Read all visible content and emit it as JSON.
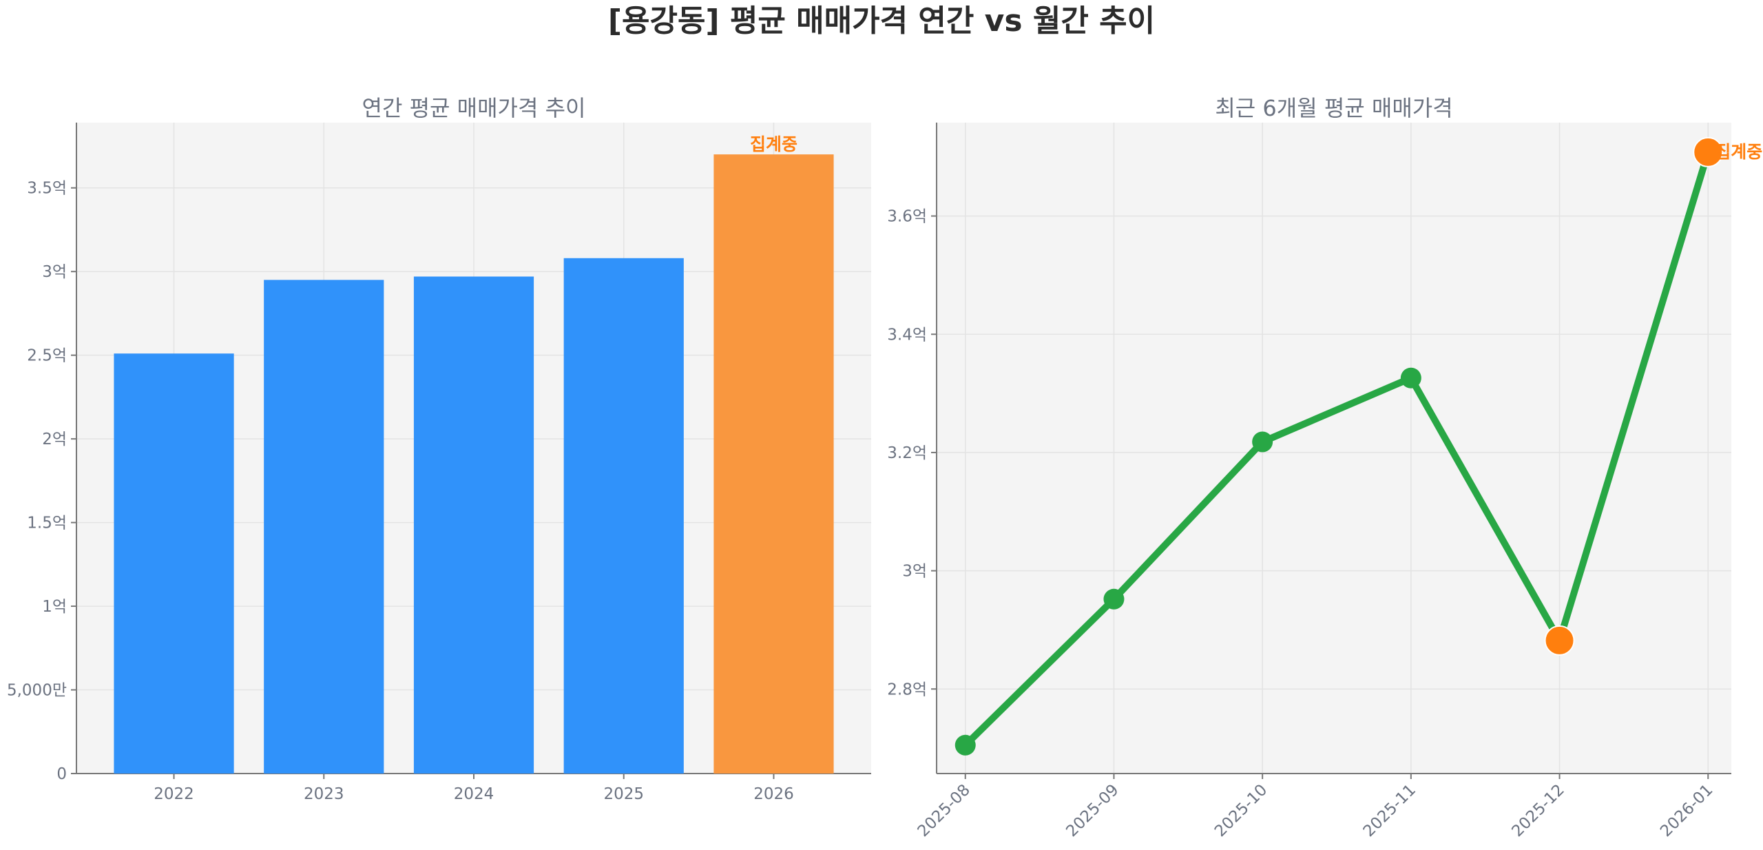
{
  "title": "[용강동] 평균 매매가격 연간 vs 월간 추이",
  "colors": {
    "bar": "#3092fa",
    "bar_partial": "#f9973f",
    "line": "#28a745",
    "partial_marker": "#ff7f0e",
    "annotation": "#ff7f0e",
    "plot_bg": "#f4f4f4"
  },
  "chart_data": [
    {
      "type": "bar",
      "title": "연간 평균 매매가격 추이",
      "categories": [
        "2022",
        "2023",
        "2024",
        "2025",
        "2026"
      ],
      "values": [
        2.51,
        2.95,
        2.97,
        3.08,
        3.7
      ],
      "unit": "억",
      "partial": [
        false,
        false,
        false,
        false,
        true
      ],
      "annotation": "집계중",
      "ylim": [
        0,
        3.89
      ],
      "yticks": [
        0,
        0.5,
        1,
        1.5,
        2,
        2.5,
        3,
        3.5
      ],
      "ytick_labels": [
        "0",
        "5,000만",
        "1억",
        "1.5억",
        "2억",
        "2.5억",
        "3억",
        "3.5억"
      ],
      "grid": true
    },
    {
      "type": "line",
      "title": "최근 6개월 평균 매매가격",
      "x": [
        "2025-08",
        "2025-09",
        "2025-10",
        "2025-11",
        "2025-12",
        "2026-01"
      ],
      "values": [
        2.705,
        2.952,
        3.218,
        3.326,
        2.882,
        3.708
      ],
      "unit": "억",
      "partial": [
        false,
        false,
        false,
        false,
        true,
        true
      ],
      "annotation": "집계중",
      "ylim": [
        2.657,
        3.758
      ],
      "yticks": [
        2.8,
        3.0,
        3.2,
        3.4,
        3.6
      ],
      "ytick_labels": [
        "2.8억",
        "3억",
        "3.2억",
        "3.4억",
        "3.6억"
      ],
      "grid": true
    }
  ]
}
